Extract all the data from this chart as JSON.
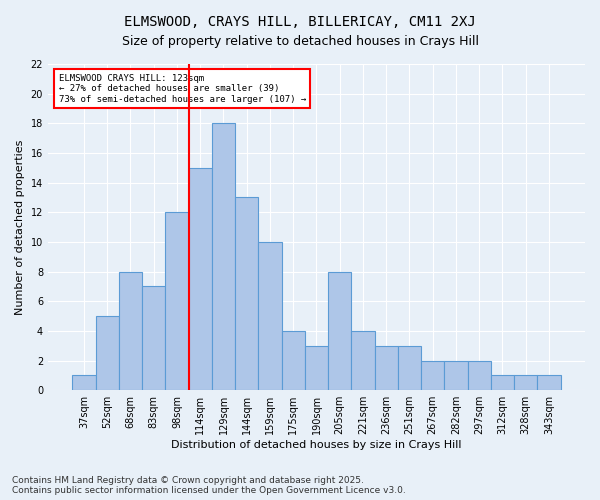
{
  "title_line1": "ELMSWOOD, CRAYS HILL, BILLERICAY, CM11 2XJ",
  "title_line2": "Size of property relative to detached houses in Crays Hill",
  "xlabel": "Distribution of detached houses by size in Crays Hill",
  "ylabel": "Number of detached properties",
  "bins": [
    "37sqm",
    "52sqm",
    "68sqm",
    "83sqm",
    "98sqm",
    "114sqm",
    "129sqm",
    "144sqm",
    "159sqm",
    "175sqm",
    "190sqm",
    "205sqm",
    "221sqm",
    "236sqm",
    "251sqm",
    "267sqm",
    "282sqm",
    "297sqm",
    "312sqm",
    "328sqm",
    "343sqm"
  ],
  "values": [
    1,
    5,
    8,
    7,
    12,
    15,
    18,
    13,
    10,
    4,
    3,
    8,
    4,
    3,
    3,
    2,
    2,
    2,
    1,
    1,
    1
  ],
  "bar_color": "#aec6e8",
  "bar_edge_color": "#5b9bd5",
  "red_line_bin": "114sqm",
  "annotation_text": "ELMSWOOD CRAYS HILL: 123sqm\n← 27% of detached houses are smaller (39)\n73% of semi-detached houses are larger (107) →",
  "annotation_box_color": "white",
  "annotation_box_edge_color": "red",
  "ylim": [
    0,
    22
  ],
  "yticks": [
    0,
    2,
    4,
    6,
    8,
    10,
    12,
    14,
    16,
    18,
    20,
    22
  ],
  "footnote": "Contains HM Land Registry data © Crown copyright and database right 2025.\nContains public sector information licensed under the Open Government Licence v3.0.",
  "background_color": "#e8f0f8",
  "grid_color": "white",
  "title_fontsize": 10,
  "subtitle_fontsize": 9,
  "axis_label_fontsize": 8,
  "tick_fontsize": 7,
  "footnote_fontsize": 6.5
}
